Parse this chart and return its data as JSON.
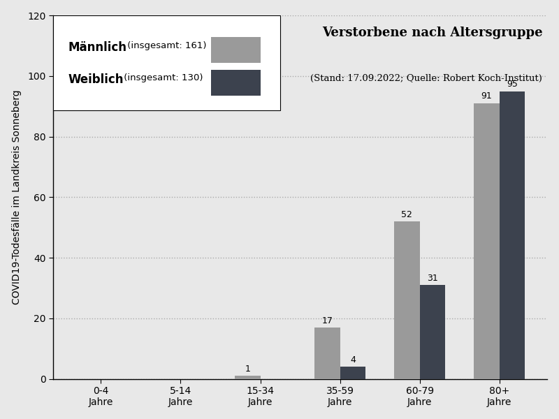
{
  "categories": [
    "0-4\nJahre",
    "5-14\nJahre",
    "15-34\nJahre",
    "35-59\nJahre",
    "60-79\nJahre",
    "80+\nJahre"
  ],
  "maennlich": [
    0,
    0,
    1,
    17,
    52,
    91
  ],
  "weiblich": [
    0,
    0,
    0,
    4,
    31,
    95
  ],
  "maennlich_total": 161,
  "weiblich_total": 130,
  "color_maennlich": "#9a9a9a",
  "color_weiblich": "#3c424e",
  "title": "Verstorbene nach Altersgruppe",
  "subtitle": "(Stand: 17.09.2022; Quelle: Robert Koch-Institut)",
  "ylabel": "COVID19-Todesfälle im Landkreis Sonneberg",
  "ylim": [
    0,
    120
  ],
  "yticks": [
    0,
    20,
    40,
    60,
    80,
    100,
    120
  ],
  "background_color": "#e8e8e8",
  "bar_width": 0.32,
  "title_fontsize": 13,
  "subtitle_fontsize": 9.5,
  "legend_main_fontsize": 12,
  "legend_sub_fontsize": 9.5,
  "label_fontsize": 9,
  "tick_fontsize": 10,
  "ylabel_fontsize": 10
}
